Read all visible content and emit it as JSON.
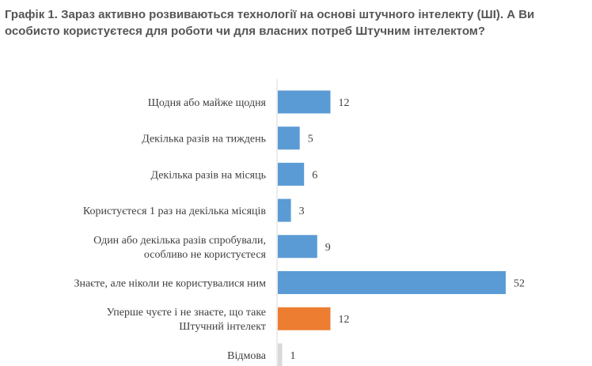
{
  "chart_data": {
    "type": "bar",
    "orientation": "horizontal",
    "title": "Графік 1. Зараз активно розвиваються технології на основі штучного інтелекту (ШІ). А Ви особисто користуєтеся для роботи чи для власних потреб Штучним інтелектом?",
    "categories": [
      [
        "Щодня або майже щодня"
      ],
      [
        "Декілька разів на тиждень"
      ],
      [
        "Декілька разів на місяць"
      ],
      [
        "Користуєтеся 1 раз на декілька місяців"
      ],
      [
        "Один або декілька разів спробували,",
        "особливо не користуєтеся"
      ],
      [
        "Знаєте, але ніколи не користувалися ним"
      ],
      [
        "Уперше чуєте і не знаєте, що таке",
        "Штучний інтелект"
      ],
      [
        "Відмова"
      ]
    ],
    "values": [
      12,
      5,
      6,
      3,
      9,
      52,
      12,
      1
    ],
    "value_labels": [
      "12",
      "5",
      "6",
      "3",
      "9",
      "52",
      "12",
      "1"
    ],
    "bar_colors": [
      "#5b9bd5",
      "#5b9bd5",
      "#5b9bd5",
      "#5b9bd5",
      "#5b9bd5",
      "#5b9bd5",
      "#ed7d31",
      "#d9d9d9"
    ],
    "xlim": [
      0,
      52
    ],
    "grid": false,
    "legend": "none"
  }
}
